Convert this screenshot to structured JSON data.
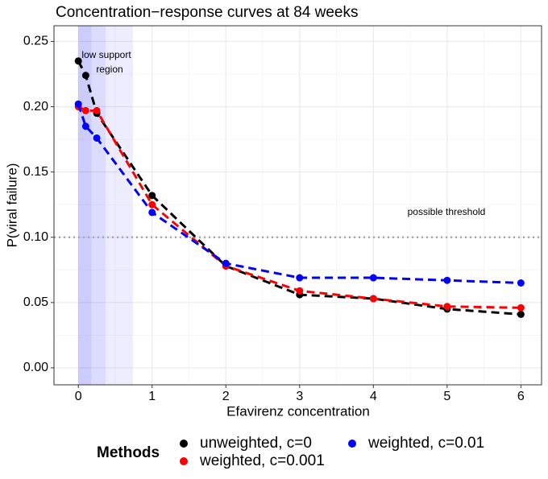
{
  "chart_data": {
    "type": "line",
    "title": "Concentration−response curves at 84 weeks",
    "x_label": "Efavirenz concentration",
    "y_label": "P(viral failure)",
    "x": [
      0,
      0.1,
      0.25,
      1,
      2,
      3,
      4,
      5,
      6
    ],
    "series": [
      {
        "name": "unweighted, c=0",
        "color": "#000000",
        "values": [
          0.235,
          0.224,
          0.195,
          0.132,
          0.078,
          0.056,
          0.053,
          0.045,
          0.041
        ]
      },
      {
        "name": "weighted, c=0.001",
        "color": "#ff0000",
        "values": [
          0.2,
          0.197,
          0.197,
          0.125,
          0.078,
          0.059,
          0.053,
          0.047,
          0.046
        ]
      },
      {
        "name": "weighted, c=0.01",
        "color": "#0000ff",
        "values": [
          0.202,
          0.185,
          0.176,
          0.119,
          0.08,
          0.069,
          0.069,
          0.067,
          0.065
        ]
      }
    ],
    "legend_title": "Methods",
    "legend_position": "bottom",
    "xlim": [
      -0.33,
      6.28
    ],
    "ylim": [
      -0.013,
      0.262
    ],
    "xticks": [
      0,
      1,
      2,
      3,
      4,
      5,
      6
    ],
    "yticks": [
      {
        "value": 0,
        "label": "0.00"
      },
      0.05,
      {
        "value": 0.1,
        "label": "0.10"
      },
      0.15,
      {
        "value": 0.2,
        "label": "0.20"
      },
      0.25
    ],
    "grid": true,
    "threshold": 0.1,
    "threshold_label": "possible threshold",
    "shaded_regions": [
      [
        0,
        0.175
      ],
      [
        0,
        0.37
      ],
      [
        0,
        0.74
      ]
    ],
    "shaded_label": [
      "low support",
      "region"
    ]
  }
}
